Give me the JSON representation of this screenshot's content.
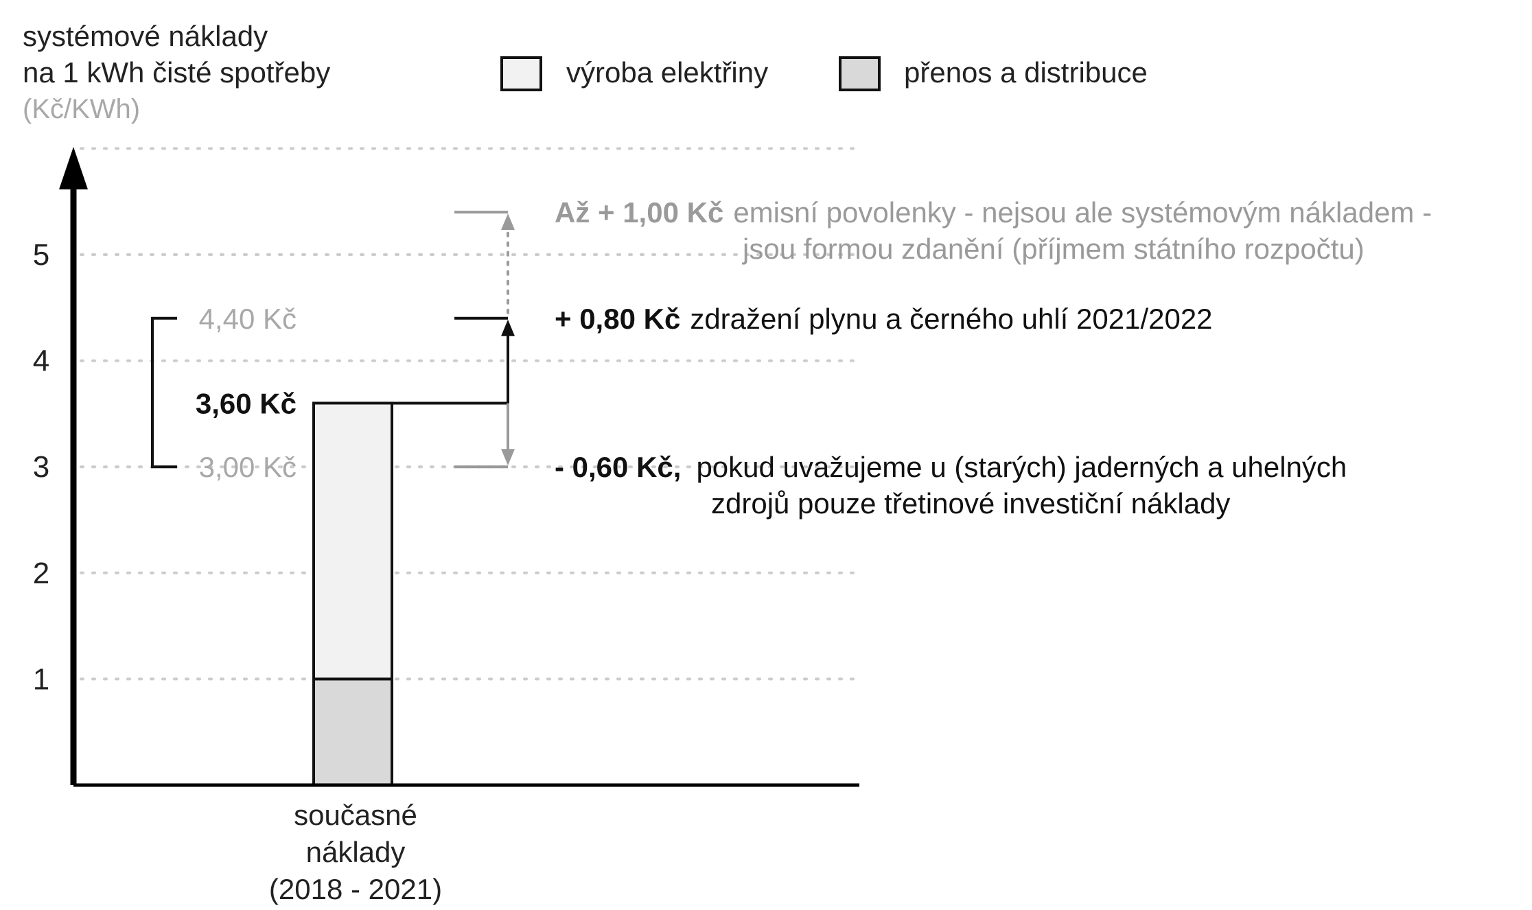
{
  "chart_data": {
    "type": "bar",
    "title": "",
    "ylabel": [
      "systémové náklady",
      "na 1 kWh čisté spotřeby"
    ],
    "yunit": "(Kč/KWh)",
    "ylim": [
      0,
      6
    ],
    "yticks": [
      1,
      2,
      3,
      4,
      5
    ],
    "grid": true,
    "legend_placement": "top",
    "categories": [
      "současné náklady (2018 - 2021)"
    ],
    "category_label_lines": [
      "současné",
      "náklady",
      "(2018 - 2021)"
    ],
    "series": [
      {
        "name": "přenos a distribuce",
        "values": [
          1.0
        ],
        "color": "#d9d9d9"
      },
      {
        "name": "výroba elektřiny",
        "values": [
          2.6
        ],
        "color": "#f2f2f2"
      }
    ],
    "total_label": "3,60 Kč",
    "range": {
      "high": 4.4,
      "high_label": "4,40 Kč",
      "low": 3.0,
      "low_label": "3,00 Kč"
    },
    "emission_level": 5.4,
    "annotations": [
      {
        "id": "emise",
        "value": 5.4,
        "color": "#9a9a9a",
        "bold": "Až + 1,00 Kč",
        "text": "emisní povolenky - nejsou ale systémovým nákladem -",
        "text2": "jsou formou zdanění (příjmem státního rozpočtu)"
      },
      {
        "id": "plyn",
        "value": 4.4,
        "color": "#111111",
        "bold": "+ 0,80 Kč",
        "text": "zdražení plynu a černého uhlí 2021/2022",
        "text2": ""
      },
      {
        "id": "jadro",
        "value": 3.0,
        "color": "#111111",
        "bold": "- 0,60 Kč,",
        "text": "pokud uvažujeme u (starých) jaderných a uhelných",
        "text2": "zdrojů pouze třetinové investiční náklady"
      }
    ],
    "colors": {
      "axis": "#000000",
      "grid": "#cccccc",
      "muted": "#9a9a9a",
      "dark": "#111111"
    }
  }
}
